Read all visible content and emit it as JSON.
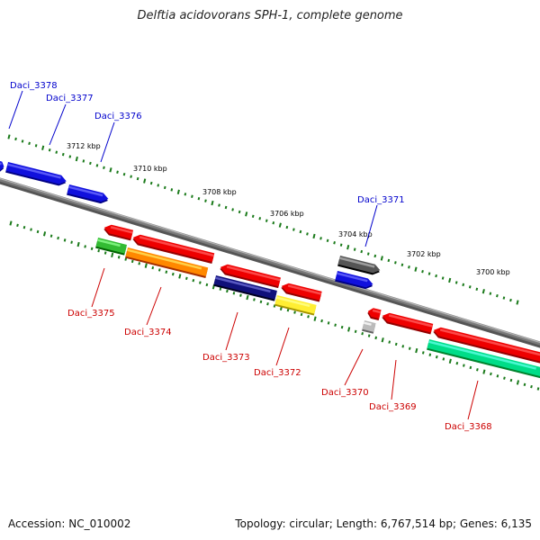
{
  "title": "Delftia acidovorans SPH-1, complete genome",
  "footer": {
    "accession": "Accession: NC_010002",
    "summary": "Topology: circular; Length: 6,767,514 bp; Genes: 6,135"
  },
  "colors": {
    "backbone": "#7a7a7a",
    "tick": "#1a7a1a",
    "forward_label": "#0000cc",
    "reverse_label": "#cc0000"
  },
  "ticks": [
    {
      "position_kbp": 3712,
      "label": "3712 kbp"
    },
    {
      "position_kbp": 3710,
      "label": "3710 kbp"
    },
    {
      "position_kbp": 3708,
      "label": "3708 kbp"
    },
    {
      "position_kbp": 3706,
      "label": "3706 kbp"
    },
    {
      "position_kbp": 3704,
      "label": "3704 kbp"
    },
    {
      "position_kbp": 3702,
      "label": "3702 kbp"
    },
    {
      "position_kbp": 3700,
      "label": "3700 kbp"
    }
  ],
  "genes": [
    {
      "name": "Daci_3378",
      "strand": "+",
      "color": "#1010dd"
    },
    {
      "name": "Daci_3377",
      "strand": "+",
      "color": "#1010dd"
    },
    {
      "name": "Daci_3376",
      "strand": "+",
      "color": "#1010dd"
    },
    {
      "name": "Daci_3375",
      "strand": "-",
      "color": "#ee0000"
    },
    {
      "name": "Daci_3374",
      "strand": "-",
      "color": "#ee0000"
    },
    {
      "name": "Daci_3373",
      "strand": "-",
      "color": "#ee0000"
    },
    {
      "name": "Daci_3372",
      "strand": "-",
      "color": "#ee0000"
    },
    {
      "name": "Daci_3371",
      "strand": "+",
      "color": "#1010dd"
    },
    {
      "name": "Daci_3370",
      "strand": "-",
      "color": "#ee0000"
    },
    {
      "name": "Daci_3369",
      "strand": "-",
      "color": "#ee0000"
    },
    {
      "name": "Daci_3368",
      "strand": "-",
      "color": "#ee0000"
    }
  ],
  "feature_colors": {
    "green": "#33bb33",
    "orange": "#ff8800",
    "navy": "#10107a",
    "yellow": "#ffee33",
    "grey_dark": "#555555",
    "grey_light": "#bbbbbb",
    "mint": "#00dd88",
    "blue": "#1010dd",
    "red": "#ee0000"
  }
}
